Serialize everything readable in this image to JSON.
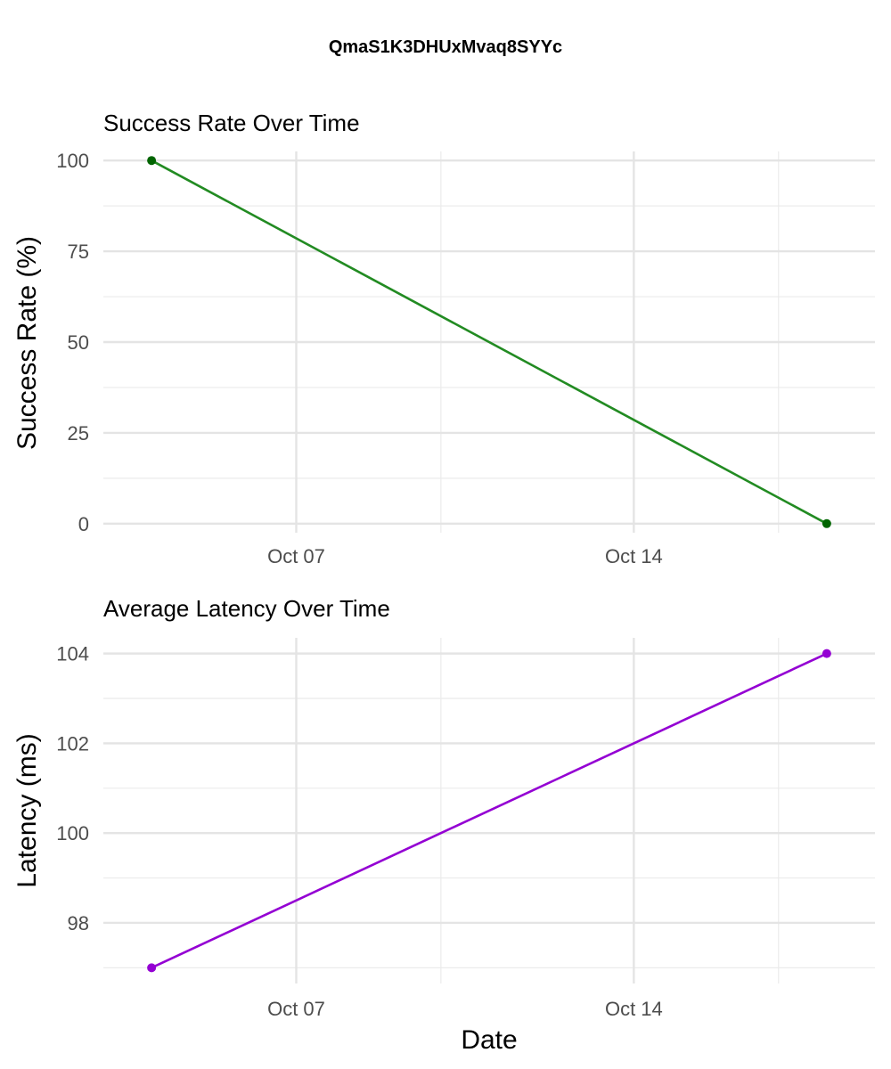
{
  "title": "QmaS1K3DHUxMvaq8SYYc",
  "chart_data": [
    {
      "type": "line",
      "title": "Success Rate Over Time",
      "xlabel": "",
      "ylabel": "Success Rate (%)",
      "x": [
        "2024-10-04",
        "2024-10-18"
      ],
      "series": [
        {
          "values": [
            100,
            0
          ]
        }
      ],
      "color": "#228B22",
      "point_color": "#006400",
      "xticks": [
        {
          "date": "2024-10-07",
          "label": "Oct 07"
        },
        {
          "date": "2024-10-14",
          "label": "Oct 14"
        }
      ],
      "xminor": [
        "2024-10-10",
        "2024-10-17"
      ],
      "yticks": [
        0,
        25,
        50,
        75,
        100
      ],
      "yminor": [
        12.5,
        37.5,
        62.5,
        87.5
      ],
      "ylim": [
        -2.5,
        102.5
      ],
      "xlim": [
        "2024-10-03",
        "2024-10-19"
      ],
      "grid": true
    },
    {
      "type": "line",
      "title": "Average Latency Over Time",
      "xlabel": "Date",
      "ylabel": "Latency (ms)",
      "x": [
        "2024-10-04",
        "2024-10-18"
      ],
      "series": [
        {
          "values": [
            97,
            104
          ]
        }
      ],
      "color": "#9400D3",
      "point_color": "#9400D3",
      "xticks": [
        {
          "date": "2024-10-07",
          "label": "Oct 07"
        },
        {
          "date": "2024-10-14",
          "label": "Oct 14"
        }
      ],
      "xminor": [
        "2024-10-10",
        "2024-10-17"
      ],
      "yticks": [
        98,
        100,
        102,
        104
      ],
      "yminor": [
        97,
        99,
        101,
        103
      ],
      "ylim": [
        96.65,
        104.35
      ],
      "xlim": [
        "2024-10-03",
        "2024-10-19"
      ],
      "grid": true
    }
  ]
}
